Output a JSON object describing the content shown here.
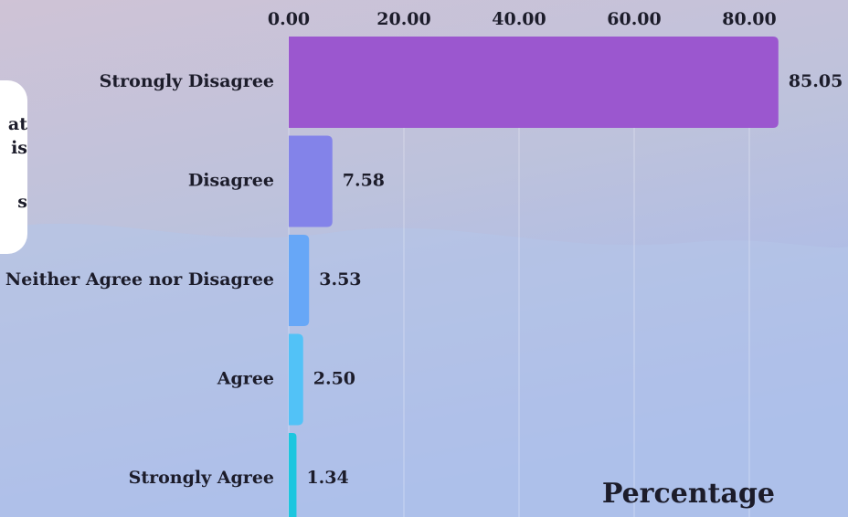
{
  "chart_data": {
    "type": "bar",
    "orientation": "horizontal",
    "categories": [
      "Strongly Disagree",
      "Disagree",
      "Neither Agree nor Disagree",
      "Agree",
      "Strongly Agree"
    ],
    "values": [
      85.05,
      7.58,
      3.53,
      2.5,
      1.34
    ],
    "value_labels": [
      "85.05",
      "7.58",
      "3.53",
      "2.50",
      "1.34"
    ],
    "colors": [
      "#9b57cf",
      "#8383e9",
      "#67a7f7",
      "#52c2f7",
      "#1cc6df"
    ],
    "xlim": [
      0,
      90
    ],
    "xticks": [
      {
        "value": 0,
        "label": "0.00"
      },
      {
        "value": 20,
        "label": "20.00"
      },
      {
        "value": 40,
        "label": "40.00"
      },
      {
        "value": 60,
        "label": "60.00"
      },
      {
        "value": 80,
        "label": "80.00"
      }
    ],
    "xlabel": "Percentage",
    "grid": true,
    "annotations": [
      "at",
      "is",
      "s"
    ]
  }
}
